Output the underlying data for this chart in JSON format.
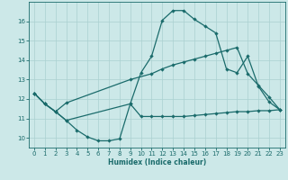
{
  "title": "",
  "xlabel": "Humidex (Indice chaleur)",
  "bg_color": "#cce8e8",
  "grid_color": "#aad0d0",
  "line_color": "#1a6b6b",
  "xlim": [
    -0.5,
    23.5
  ],
  "ylim": [
    9.5,
    17.0
  ],
  "xticks": [
    0,
    1,
    2,
    3,
    4,
    5,
    6,
    7,
    8,
    9,
    10,
    11,
    12,
    13,
    14,
    15,
    16,
    17,
    18,
    19,
    20,
    21,
    22,
    23
  ],
  "yticks": [
    10,
    11,
    12,
    13,
    14,
    15,
    16
  ],
  "curve1_x": [
    0,
    1,
    2,
    3,
    4,
    5,
    6,
    7,
    8,
    9,
    10,
    11,
    12,
    13,
    14,
    15,
    16,
    17,
    18,
    19,
    20,
    21,
    22,
    23
  ],
  "curve1_y": [
    12.3,
    11.75,
    11.35,
    10.9,
    10.4,
    10.05,
    9.85,
    9.85,
    9.95,
    11.75,
    11.1,
    11.1,
    11.1,
    11.1,
    11.1,
    11.15,
    11.2,
    11.25,
    11.3,
    11.35,
    11.35,
    11.4,
    11.4,
    11.45
  ],
  "curve2_x": [
    0,
    1,
    2,
    3,
    9,
    11,
    12,
    13,
    14,
    15,
    16,
    17,
    18,
    19,
    20,
    21,
    22,
    23
  ],
  "curve2_y": [
    12.3,
    11.75,
    11.35,
    11.8,
    13.0,
    13.3,
    13.55,
    13.75,
    13.9,
    14.05,
    14.2,
    14.35,
    14.5,
    14.65,
    13.3,
    12.7,
    12.1,
    11.45
  ],
  "curve3_x": [
    0,
    1,
    2,
    3,
    9,
    10,
    11,
    12,
    13,
    14,
    15,
    16,
    17,
    18,
    19,
    20,
    21,
    22,
    23
  ],
  "curve3_y": [
    12.3,
    11.75,
    11.35,
    10.9,
    11.75,
    13.35,
    14.2,
    16.05,
    16.55,
    16.55,
    16.1,
    15.75,
    15.4,
    13.55,
    13.35,
    14.2,
    12.65,
    11.85,
    11.45
  ]
}
